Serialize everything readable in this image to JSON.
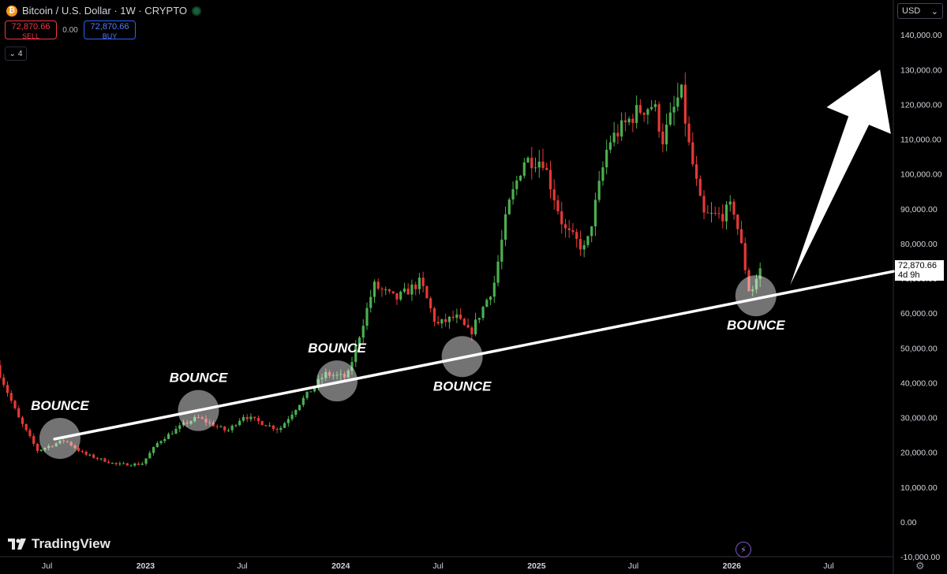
{
  "header": {
    "coin_icon": "bitcoin-icon",
    "coin_glyph": "₿",
    "title": "Bitcoin / U.S. Dollar · 1W · CRYPTO",
    "status_icon": "market-open-dot"
  },
  "trade": {
    "sell_price": "72,870.66",
    "sell_label": "SELL",
    "spread": "0.00",
    "buy_price": "72,870.66",
    "buy_label": "BUY"
  },
  "indicators": {
    "chevron": "⌄",
    "count": "4"
  },
  "currency": {
    "label": "USD",
    "chevron": "⌄"
  },
  "last_price": {
    "value": "72,870.66",
    "countdown": "4d 9h"
  },
  "branding": {
    "name": "TradingView",
    "icon": "tradingview-logo-icon"
  },
  "colors": {
    "up": "#4caf50",
    "down": "#e53935",
    "background": "#000000",
    "overlay": "#ffffff"
  },
  "chart_data": {
    "type": "candlestick",
    "y_axis": {
      "ticks": [
        -10000,
        0,
        10000,
        20000,
        30000,
        40000,
        50000,
        60000,
        70000,
        80000,
        90000,
        100000,
        110000,
        120000,
        130000,
        140000
      ],
      "labels": [
        "-10,000.00",
        "0.00",
        "10,000.00",
        "20,000.00",
        "30,000.00",
        "40,000.00",
        "50,000.00",
        "60,000.00",
        "70,000.00",
        "80,000.00",
        "90,000.00",
        "100,000.00",
        "110,000.00",
        "120,000.00",
        "130,000.00",
        "140,000.00"
      ],
      "range": [
        -10000,
        150000
      ]
    },
    "x_axis": {
      "ticks": [
        "2022-07-01",
        "2023-01-01",
        "2023-07-01",
        "2024-01-01",
        "2024-07-01",
        "2025-01-01",
        "2025-07-01",
        "2026-01-01",
        "2026-07-01"
      ],
      "labels": [
        "Jul",
        "2023",
        "Jul",
        "2024",
        "Jul",
        "2025",
        "Jul",
        "2026",
        "Jul"
      ],
      "bold": [
        false,
        true,
        false,
        true,
        false,
        true,
        false,
        true,
        false
      ],
      "range": [
        "2022-04-04",
        "2026-10-30"
      ]
    },
    "price_path": [
      [
        "2022-04-04",
        45000
      ],
      [
        "2022-05-15",
        30000
      ],
      [
        "2022-06-20",
        20500
      ],
      [
        "2022-08-10",
        23500
      ],
      [
        "2022-09-15",
        19500
      ],
      [
        "2022-11-15",
        16500
      ],
      [
        "2023-01-01",
        16600
      ],
      [
        "2023-02-01",
        23000
      ],
      [
        "2023-03-20",
        28000
      ],
      [
        "2023-04-15",
        30000
      ],
      [
        "2023-06-10",
        26000
      ],
      [
        "2023-07-10",
        30500
      ],
      [
        "2023-09-15",
        26500
      ],
      [
        "2023-10-25",
        34500
      ],
      [
        "2023-12-10",
        42500
      ],
      [
        "2024-01-20",
        41500
      ],
      [
        "2024-03-10",
        68000
      ],
      [
        "2024-04-20",
        64000
      ],
      [
        "2024-06-05",
        69000
      ],
      [
        "2024-07-05",
        56500
      ],
      [
        "2024-08-10",
        59000
      ],
      [
        "2024-09-06",
        54000
      ],
      [
        "2024-10-20",
        68000
      ],
      [
        "2024-11-15",
        90000
      ],
      [
        "2024-12-15",
        104000
      ],
      [
        "2025-01-20",
        104000
      ],
      [
        "2025-03-01",
        84000
      ],
      [
        "2025-04-10",
        78000
      ],
      [
        "2025-05-22",
        109000
      ],
      [
        "2025-07-15",
        118000
      ],
      [
        "2025-08-15",
        120000
      ],
      [
        "2025-09-01",
        110000
      ],
      [
        "2025-10-05",
        124000
      ],
      [
        "2025-10-20",
        108000
      ],
      [
        "2025-11-15",
        88000
      ],
      [
        "2025-12-20",
        88000
      ],
      [
        "2026-01-10",
        91000
      ],
      [
        "2026-01-25",
        80000
      ],
      [
        "2026-02-10",
        66000
      ],
      [
        "2026-02-20",
        68000
      ],
      [
        "2026-02-28",
        72870
      ]
    ],
    "trendline": {
      "points": [
        [
          "2022-07-15",
          23800
        ],
        [
          "2026-10-30",
          72000
        ]
      ],
      "color": "#ffffff"
    },
    "annotations": [
      {
        "text": "BOUNCE",
        "circle_at": [
          "2022-07-25",
          24000
        ],
        "label_side": "above"
      },
      {
        "text": "BOUNCE",
        "circle_at": [
          "2023-04-10",
          32000
        ],
        "label_side": "above"
      },
      {
        "text": "BOUNCE",
        "circle_at": [
          "2023-12-25",
          40500
        ],
        "label_side": "above"
      },
      {
        "text": "BOUNCE",
        "circle_at": [
          "2024-08-15",
          47500
        ],
        "label_side": "below"
      },
      {
        "text": "BOUNCE",
        "circle_at": [
          "2026-02-15",
          65000
        ],
        "label_side": "below"
      }
    ],
    "arrow": {
      "from": [
        "2026-04-20",
        68000
      ],
      "to": [
        "2026-10-05",
        130000
      ],
      "color": "#ffffff"
    },
    "last_price": 72870.66
  }
}
